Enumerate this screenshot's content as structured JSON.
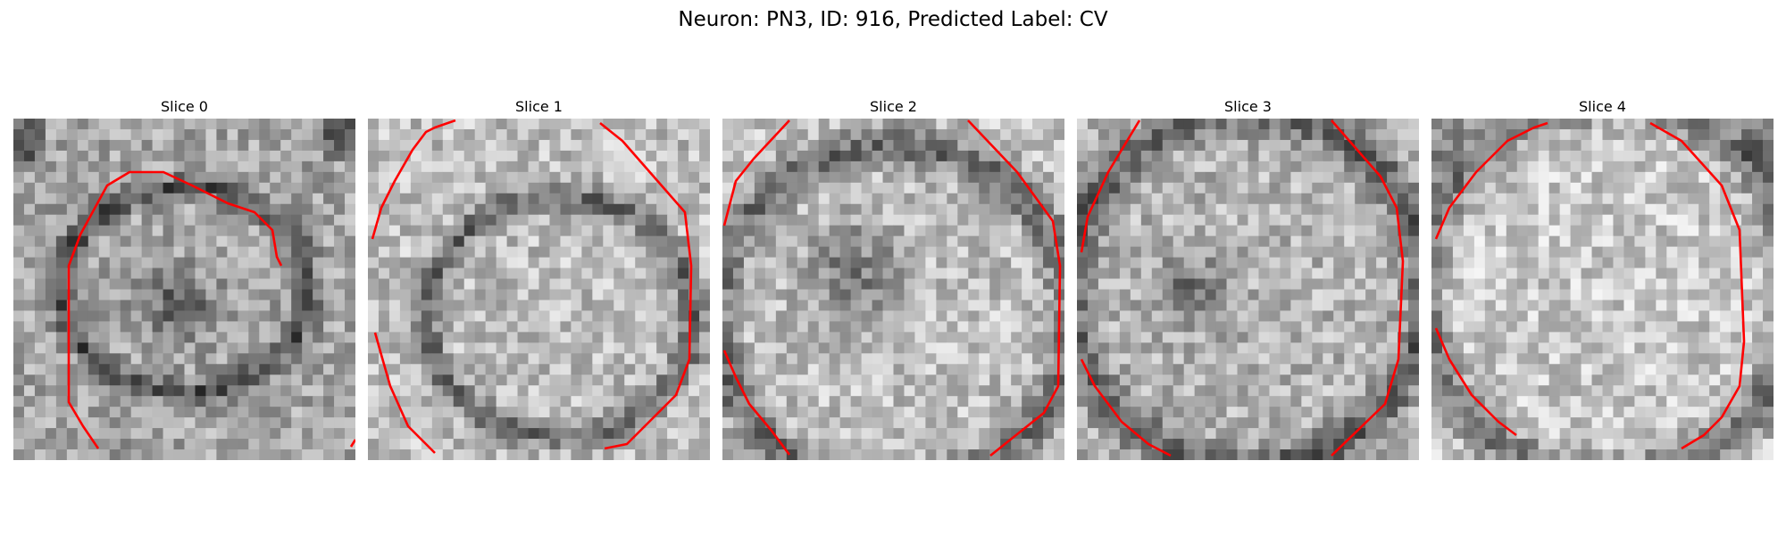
{
  "title": "Neuron: PN3, ID: 916, Predicted Label: CV",
  "slices": [
    {
      "label": "Slice 0"
    },
    {
      "label": "Slice 1"
    },
    {
      "label": "Slice 2"
    },
    {
      "label": "Slice 3"
    },
    {
      "label": "Slice 4"
    }
  ],
  "colors": {
    "contour": "#ff0000",
    "background": "#ffffff",
    "text": "#000000"
  }
}
